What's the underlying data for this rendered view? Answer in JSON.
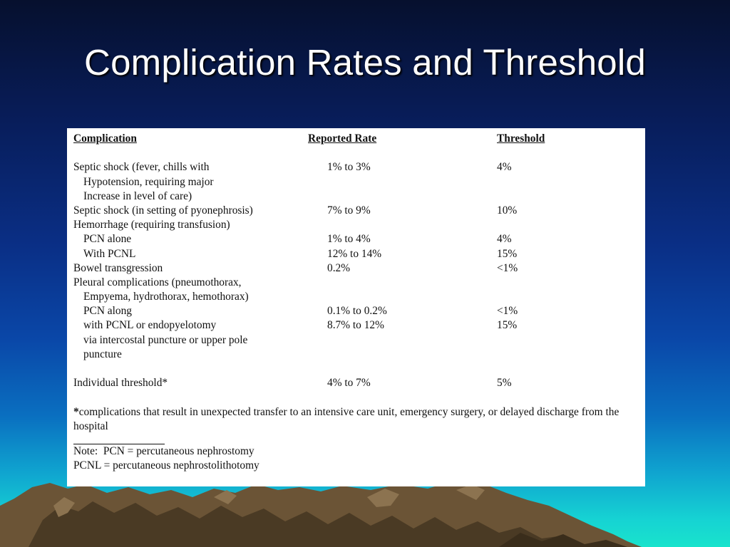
{
  "slide": {
    "title": "Complication Rates and Threshold"
  },
  "table": {
    "headers": {
      "complication": "Complication",
      "rate": "Reported Rate",
      "threshold": "Threshold"
    },
    "rows": [
      {
        "label": "Septic shock (fever, chills with",
        "indent": false,
        "rate": "1% to 3%",
        "threshold": "4%"
      },
      {
        "label": "Hypotension, requiring major",
        "indent": true,
        "rate": "",
        "threshold": ""
      },
      {
        "label": "Increase in level of care)",
        "indent": true,
        "rate": "",
        "threshold": ""
      },
      {
        "label": "Septic shock (in setting of pyonephrosis)",
        "indent": false,
        "rate": "7% to 9%",
        "threshold": "10%"
      },
      {
        "label": "Hemorrhage (requiring transfusion)",
        "indent": false,
        "rate": "",
        "threshold": ""
      },
      {
        "label": "PCN alone",
        "indent": true,
        "rate": "1% to 4%",
        "threshold": "4%"
      },
      {
        "label": "With PCNL",
        "indent": true,
        "rate": "12% to 14%",
        "threshold": "15%"
      },
      {
        "label": "Bowel transgression",
        "indent": false,
        "rate": "0.2%",
        "threshold": "<1%"
      },
      {
        "label": "Pleural complications (pneumothorax,",
        "indent": false,
        "rate": "",
        "threshold": ""
      },
      {
        "label": "Empyema, hydrothorax, hemothorax)",
        "indent": true,
        "rate": "",
        "threshold": ""
      },
      {
        "label": "PCN along",
        "indent": true,
        "rate": "0.1% to 0.2%",
        "threshold": "<1%"
      },
      {
        "label": "with PCNL or endopyelotomy",
        "indent": true,
        "rate": "8.7% to 12%",
        "threshold": "15%"
      },
      {
        "label": "via intercostal puncture or upper pole",
        "indent": true,
        "rate": "",
        "threshold": ""
      },
      {
        "label": "puncture",
        "indent": true,
        "rate": "",
        "threshold": ""
      }
    ],
    "individual": {
      "label": "Individual threshold*",
      "rate": "4% to 7%",
      "threshold": "5%"
    },
    "footnote_mark": "*",
    "footnote_text": "complications that result in unexpected transfer to an intensive care unit, emergency surgery, or delayed discharge from the hospital",
    "notes": [
      "Note:  PCN = percutaneous nephrostomy",
      "PCNL = percutaneous nephrostolithotomy"
    ]
  }
}
